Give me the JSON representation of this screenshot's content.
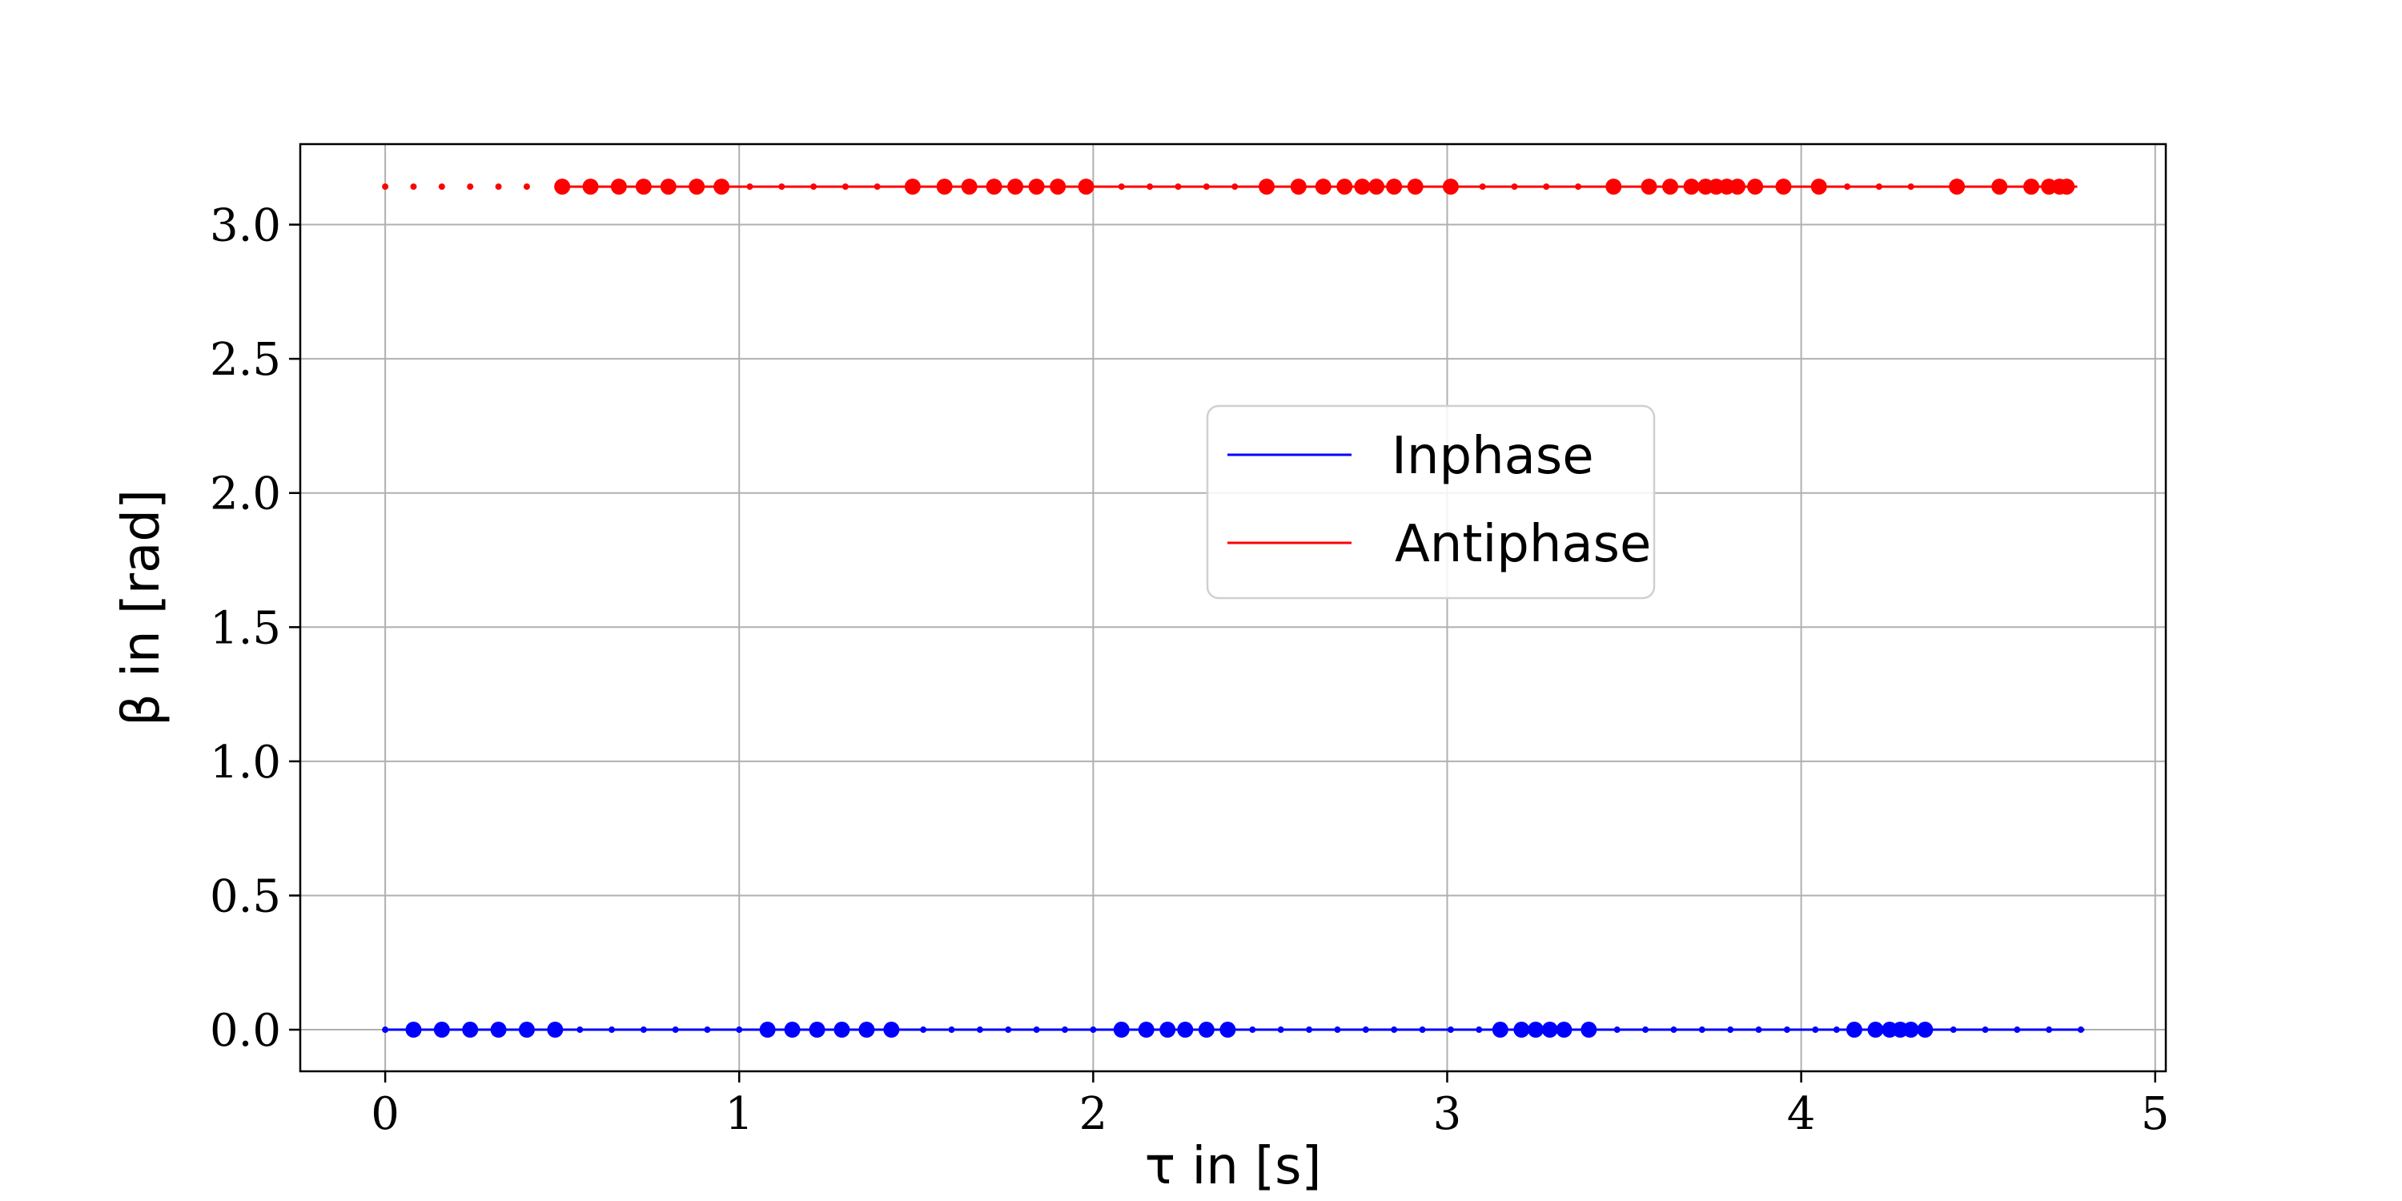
{
  "chart_data": {
    "type": "scatter",
    "title": "",
    "xlabel": "τ in [s]",
    "ylabel": "β in [rad]",
    "xlim": [
      -0.24,
      5.03
    ],
    "ylim": [
      -0.155,
      3.3
    ],
    "xticks": [
      0,
      1,
      2,
      3,
      4,
      5
    ],
    "xtick_labels": [
      "0",
      "1",
      "2",
      "3",
      "4",
      "5"
    ],
    "yticks": [
      0.0,
      0.5,
      1.0,
      1.5,
      2.0,
      2.5,
      3.0
    ],
    "ytick_labels": [
      "0.0",
      "0.5",
      "1.0",
      "1.5",
      "2.0",
      "2.5",
      "3.0"
    ],
    "grid": true,
    "legend_position": "center-right",
    "series": [
      {
        "name": "Inphase",
        "color": "#0000ff",
        "y": 0.0,
        "x_line": [
          0,
          4.8
        ],
        "large_x": [
          0.08,
          0.16,
          0.24,
          0.32,
          0.4,
          0.48,
          1.08,
          1.15,
          1.22,
          1.29,
          1.36,
          1.43,
          2.08,
          2.15,
          2.21,
          2.26,
          2.32,
          2.38,
          3.15,
          3.21,
          3.25,
          3.29,
          3.33,
          3.4,
          4.15,
          4.21,
          4.25,
          4.28,
          4.31,
          4.35
        ],
        "small_x": [
          0,
          0.55,
          0.64,
          0.73,
          0.82,
          0.91,
          1.0,
          1.52,
          1.6,
          1.68,
          1.76,
          1.84,
          1.92,
          2.0,
          2.45,
          2.53,
          2.61,
          2.69,
          2.77,
          2.85,
          2.93,
          3.01,
          3.09,
          3.48,
          3.56,
          3.64,
          3.72,
          3.8,
          3.88,
          3.96,
          4.04,
          4.1,
          4.43,
          4.52,
          4.61,
          4.7,
          4.79
        ]
      },
      {
        "name": "Antiphase",
        "color": "#ff0000",
        "y": 3.14159,
        "x_line": [
          0.5,
          4.78
        ],
        "large_x": [
          0.5,
          0.58,
          0.66,
          0.73,
          0.8,
          0.88,
          0.95,
          1.49,
          1.58,
          1.65,
          1.72,
          1.78,
          1.84,
          1.9,
          1.98,
          2.49,
          2.58,
          2.65,
          2.71,
          2.76,
          2.8,
          2.85,
          2.91,
          3.01,
          3.47,
          3.57,
          3.63,
          3.69,
          3.73,
          3.76,
          3.79,
          3.82,
          3.87,
          3.95,
          4.05,
          4.44,
          4.56,
          4.65,
          4.7,
          4.73,
          4.75
        ],
        "small_x": [
          0,
          0.08,
          0.16,
          0.24,
          0.32,
          0.4,
          1.03,
          1.12,
          1.21,
          1.3,
          1.39,
          2.08,
          2.16,
          2.24,
          2.32,
          2.4,
          3.1,
          3.19,
          3.28,
          3.37,
          4.13,
          4.22,
          4.31
        ]
      }
    ]
  }
}
